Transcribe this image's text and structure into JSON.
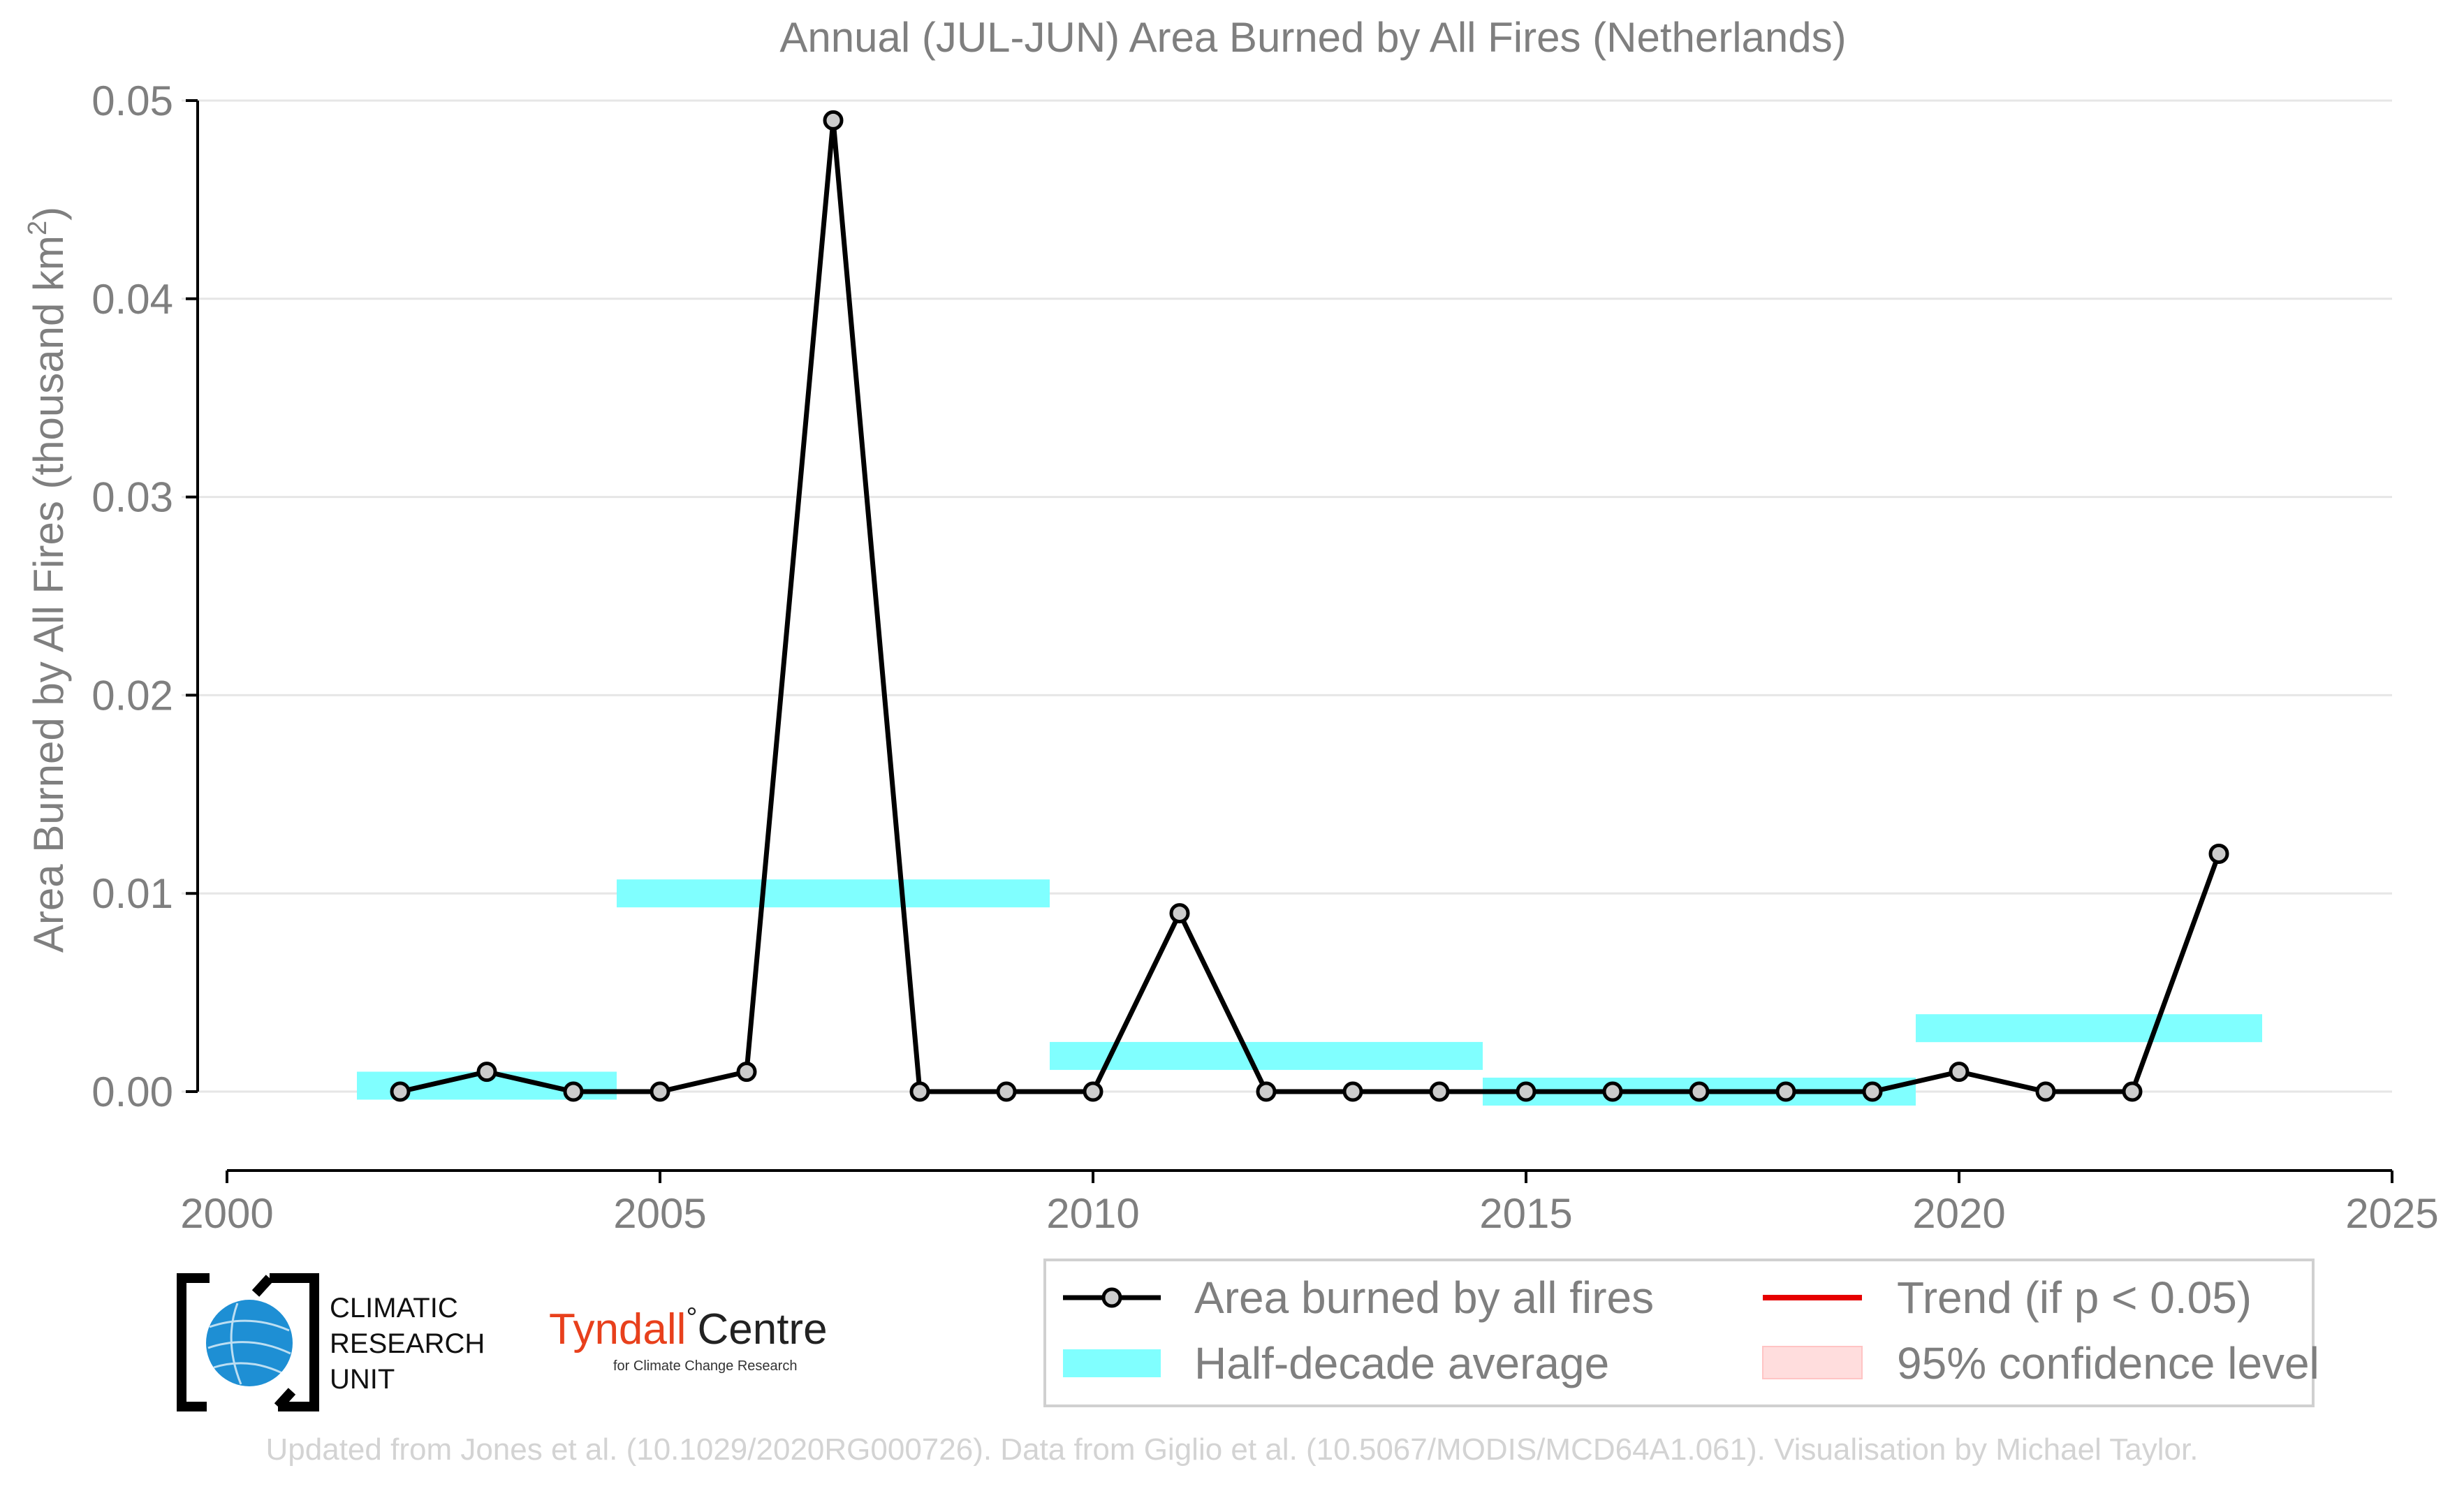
{
  "chart_data": {
    "type": "line",
    "title": "Annual (JUL-JUN) Area Burned by All Fires (Netherlands)",
    "ylabel": "Area Burned by All Fires (thousand km",
    "ylabel_sup": "2",
    "ylabel_tail": ")",
    "xlabel": "",
    "xlim": [
      2000,
      2025
    ],
    "ylim": [
      -0.004,
      0.05
    ],
    "x_ticks": [
      2000,
      2005,
      2010,
      2015,
      2020,
      2025
    ],
    "x_tick_labels": [
      "2000",
      "2005",
      "2010",
      "2015",
      "2020",
      "2025"
    ],
    "y_ticks": [
      0.0,
      0.01,
      0.02,
      0.03,
      0.04,
      0.05
    ],
    "y_tick_labels": [
      "0.00",
      "0.01",
      "0.02",
      "0.03",
      "0.04",
      "0.05"
    ],
    "grid": true,
    "series": [
      {
        "name": "Area burned by all fires",
        "color": "#000000",
        "marker_fill": "#cccccc",
        "x": [
          2002,
          2003,
          2004,
          2005,
          2006,
          2007,
          2008,
          2009,
          2010,
          2011,
          2012,
          2013,
          2014,
          2015,
          2016,
          2017,
          2018,
          2019,
          2020,
          2021,
          2022,
          2023
        ],
        "y": [
          0.0,
          0.001,
          0.0,
          0.0,
          0.001,
          0.049,
          0.0,
          0.0,
          0.0,
          0.009,
          0.0,
          0.0,
          0.0,
          0.0,
          0.0,
          0.0,
          0.0,
          0.0,
          0.001,
          0.0,
          0.0,
          0.012
        ]
      }
    ],
    "half_decade_average": {
      "name": "Half-decade average",
      "color": "#80ffff",
      "periods": [
        {
          "x_start": 2001.5,
          "x_end": 2004.5,
          "value": 0.0003
        },
        {
          "x_start": 2004.5,
          "x_end": 2009.5,
          "value": 0.01
        },
        {
          "x_start": 2009.5,
          "x_end": 2014.5,
          "value": 0.0018
        },
        {
          "x_start": 2014.5,
          "x_end": 2019.5,
          "value": 0.0
        },
        {
          "x_start": 2019.5,
          "x_end": 2023.5,
          "value": 0.0032
        }
      ]
    },
    "legend": {
      "placement": "bottom-right",
      "entries": [
        {
          "label": "Area burned by all fires",
          "color": "#000000",
          "kind": "line-marker"
        },
        {
          "label": "Trend (if p < 0.05)",
          "color": "#e60000",
          "kind": "line"
        },
        {
          "label": "Half-decade average",
          "color": "#80ffff",
          "kind": "band"
        },
        {
          "label": "95% confidence level",
          "color": "#ffdddd",
          "kind": "patch"
        }
      ]
    }
  },
  "logos": {
    "cru_lines": [
      "CLIMATIC",
      "RESEARCH",
      "UNIT"
    ],
    "tyndall_red": "Tyndall",
    "tyndall_degree": "°",
    "tyndall_black": "Centre",
    "tyndall_sub": "for Climate Change Research",
    "tyndall_color": "#e8401c"
  },
  "footer": "Updated from Jones et al. (10.1029/2020RG000726). Data from Giglio et al. (10.5067/MODIS/MCD64A1.061). Visualisation by Michael Taylor."
}
